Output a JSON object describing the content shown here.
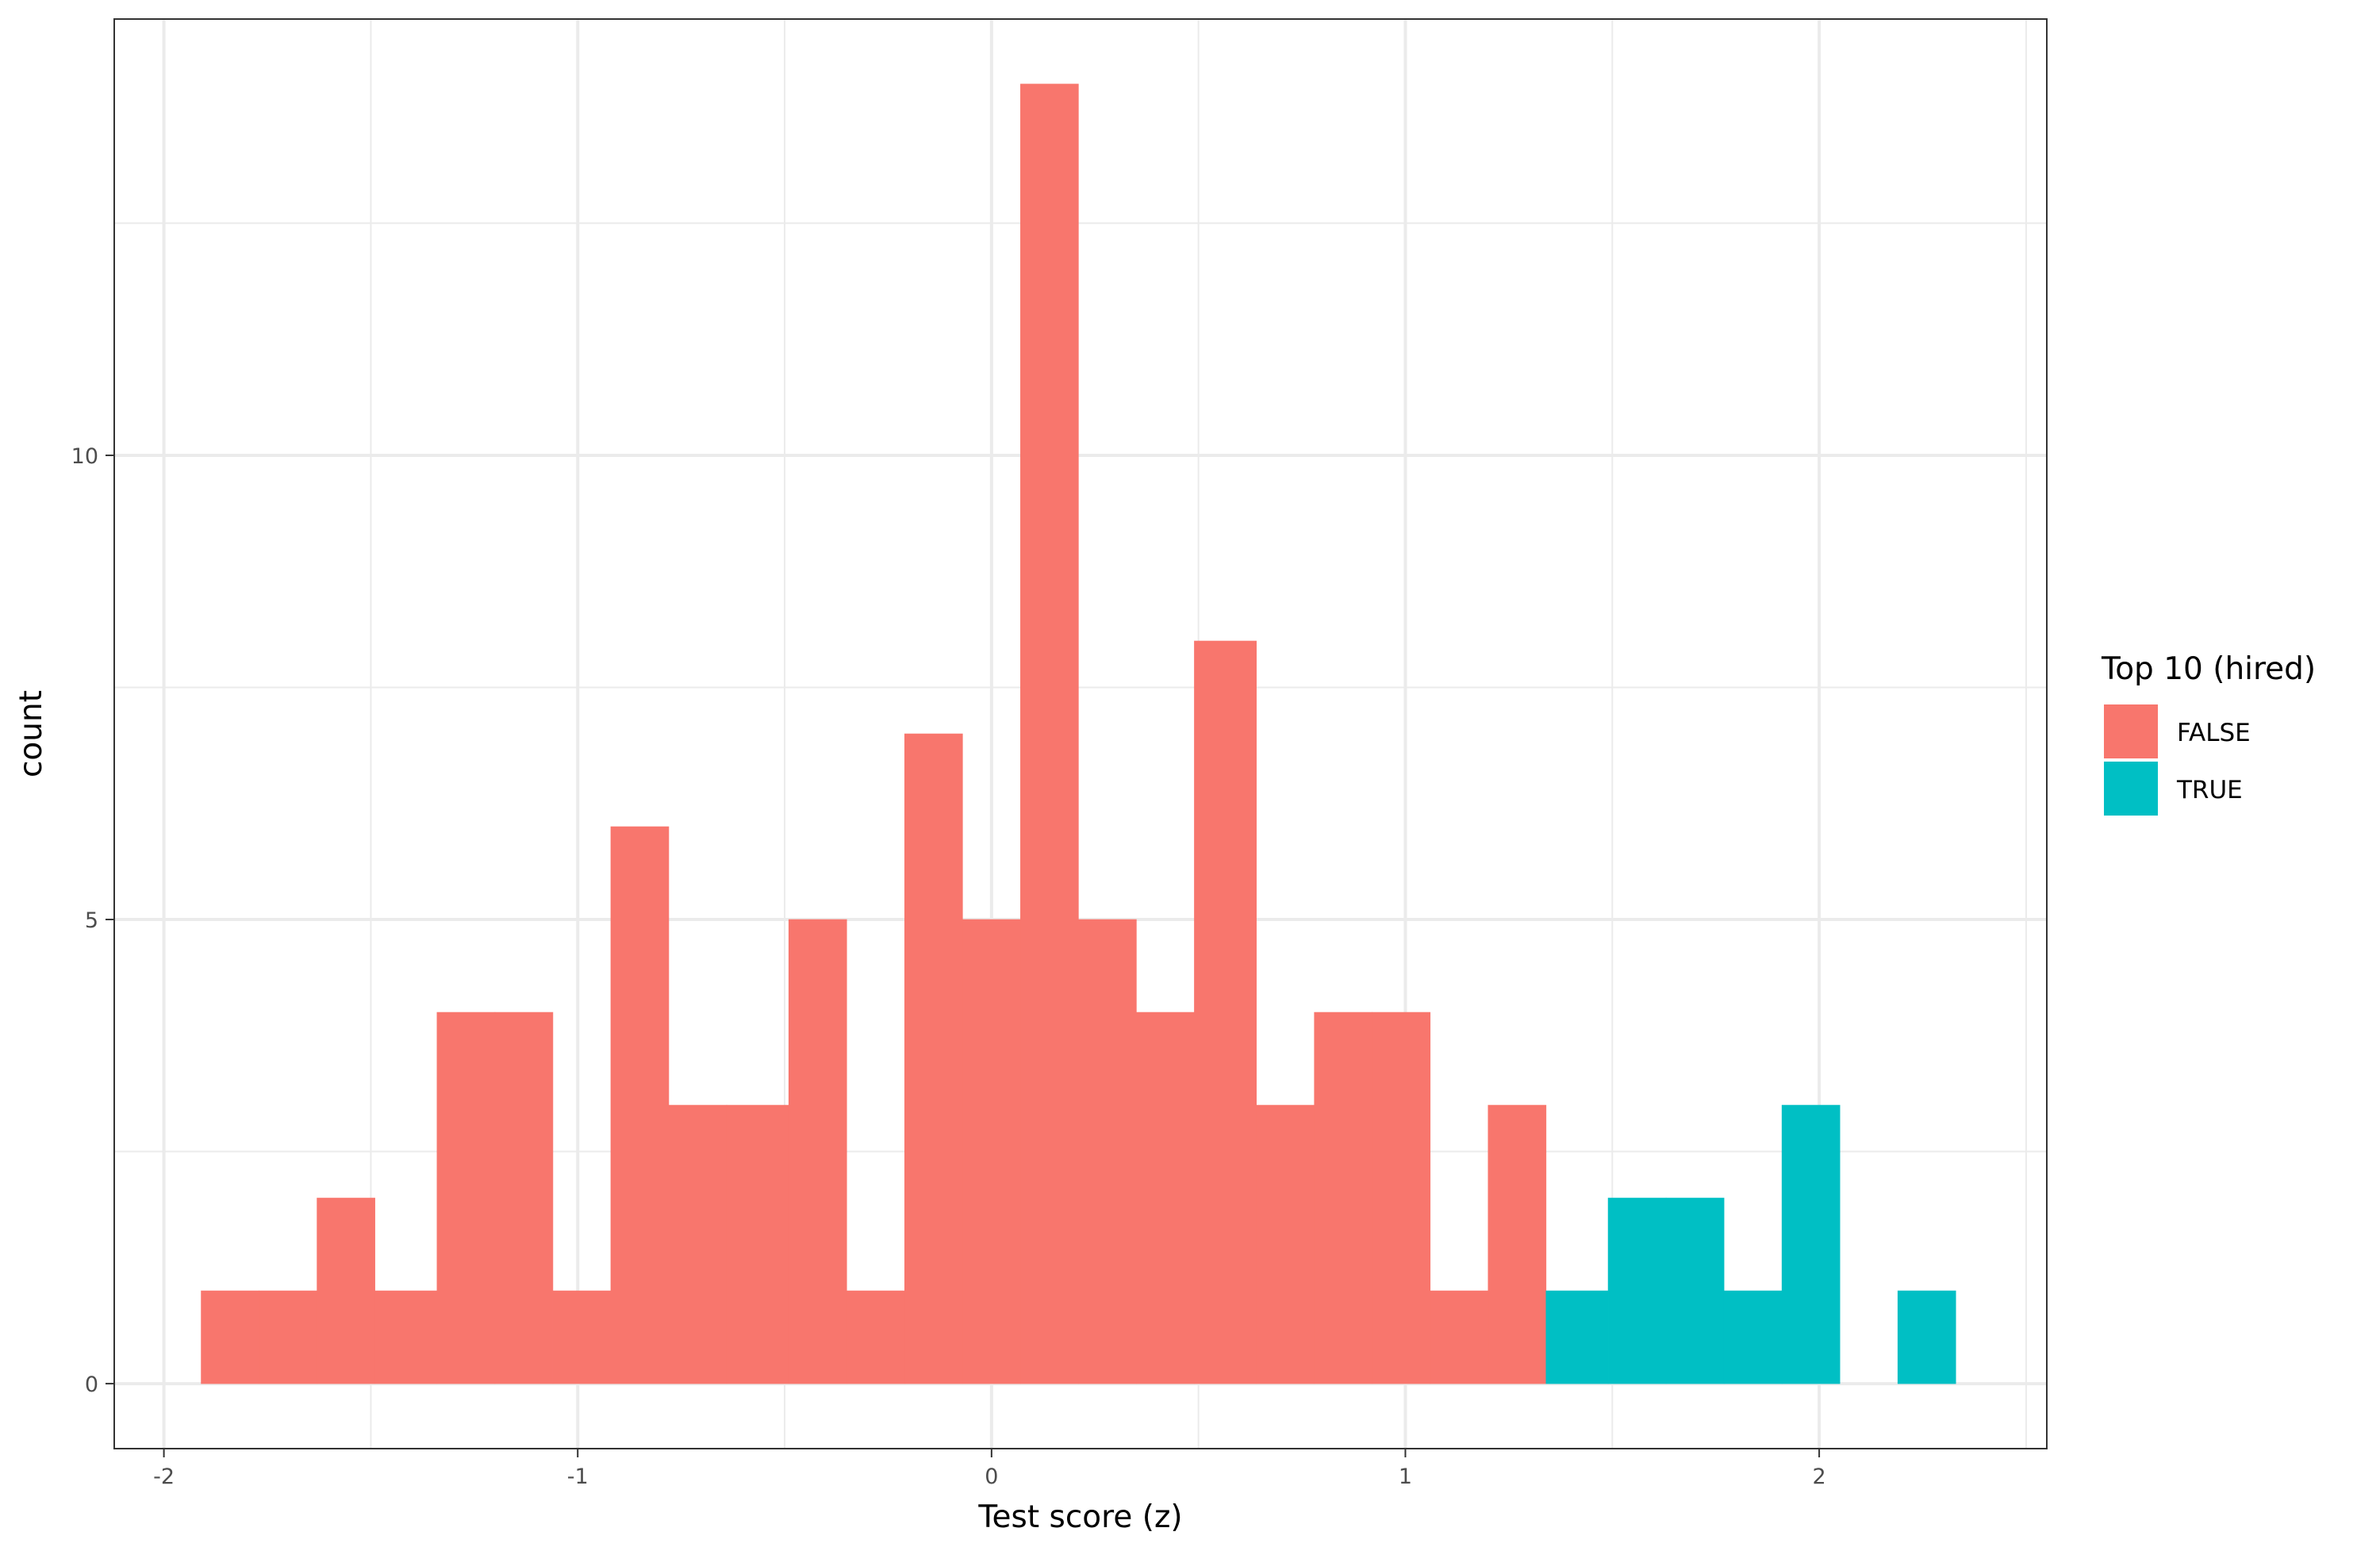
{
  "chart_data": {
    "type": "bar",
    "subtype": "stacked-histogram",
    "title": "",
    "xlabel": "Test score (z)",
    "ylabel": "count",
    "xlim": [
      -2.12,
      2.55
    ],
    "ylim": [
      -0.7,
      14.7
    ],
    "x_ticks": [
      -2,
      -1,
      0,
      1,
      2
    ],
    "x_tick_labels": [
      "-2",
      "-1",
      "0",
      "1",
      "2"
    ],
    "y_ticks": [
      0,
      5,
      10
    ],
    "y_tick_labels": [
      "0",
      "5",
      "10"
    ],
    "grid": true,
    "legend": {
      "title": "Top 10 (hired)",
      "position": "right"
    },
    "bin_width": 0.1413,
    "series": [
      {
        "name": "FALSE",
        "color": "#F8766D",
        "bins": [
          {
            "x_min": -1.91,
            "x_max": -1.77,
            "count": 1
          },
          {
            "x_min": -1.77,
            "x_max": -1.63,
            "count": 1
          },
          {
            "x_min": -1.63,
            "x_max": -1.49,
            "count": 2
          },
          {
            "x_min": -1.49,
            "x_max": -1.34,
            "count": 1
          },
          {
            "x_min": -1.34,
            "x_max": -1.2,
            "count": 4
          },
          {
            "x_min": -1.2,
            "x_max": -1.06,
            "count": 4
          },
          {
            "x_min": -1.06,
            "x_max": -0.92,
            "count": 1
          },
          {
            "x_min": -0.92,
            "x_max": -0.78,
            "count": 6
          },
          {
            "x_min": -0.78,
            "x_max": -0.64,
            "count": 3
          },
          {
            "x_min": -0.64,
            "x_max": -0.49,
            "count": 3
          },
          {
            "x_min": -0.49,
            "x_max": -0.35,
            "count": 5
          },
          {
            "x_min": -0.35,
            "x_max": -0.21,
            "count": 1
          },
          {
            "x_min": -0.21,
            "x_max": -0.07,
            "count": 7
          },
          {
            "x_min": -0.07,
            "x_max": 0.07,
            "count": 5
          },
          {
            "x_min": 0.07,
            "x_max": 0.21,
            "count": 14
          },
          {
            "x_min": 0.21,
            "x_max": 0.35,
            "count": 5
          },
          {
            "x_min": 0.35,
            "x_max": 0.49,
            "count": 4
          },
          {
            "x_min": 0.49,
            "x_max": 0.64,
            "count": 8
          },
          {
            "x_min": 0.64,
            "x_max": 0.78,
            "count": 3
          },
          {
            "x_min": 0.78,
            "x_max": 0.92,
            "count": 4
          },
          {
            "x_min": 0.92,
            "x_max": 1.06,
            "count": 4
          },
          {
            "x_min": 1.06,
            "x_max": 1.2,
            "count": 1
          },
          {
            "x_min": 1.2,
            "x_max": 1.34,
            "count": 3
          }
        ]
      },
      {
        "name": "TRUE",
        "color": "#00BFC4",
        "bins": [
          {
            "x_min": 1.34,
            "x_max": 1.49,
            "count": 1
          },
          {
            "x_min": 1.49,
            "x_max": 1.63,
            "count": 2
          },
          {
            "x_min": 1.63,
            "x_max": 1.77,
            "count": 2
          },
          {
            "x_min": 1.77,
            "x_max": 1.91,
            "count": 1
          },
          {
            "x_min": 1.91,
            "x_max": 2.05,
            "count": 3
          },
          {
            "x_min": 2.19,
            "x_max": 2.33,
            "count": 1
          }
        ]
      }
    ]
  }
}
